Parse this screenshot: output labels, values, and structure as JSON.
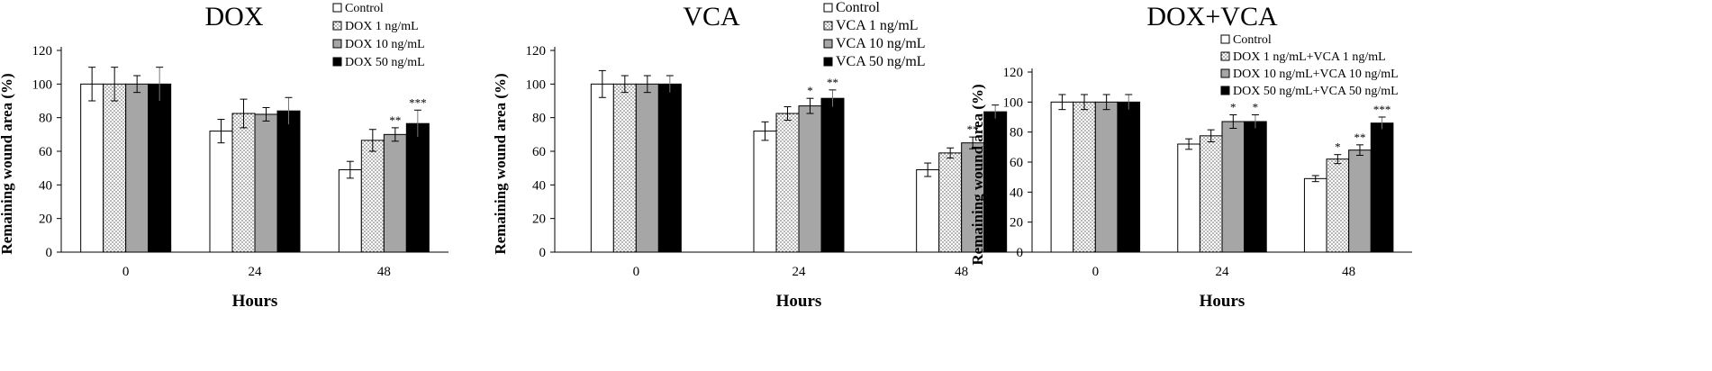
{
  "chart_data": [
    {
      "type": "bar",
      "title": "DOX",
      "xlabel": "Hours",
      "ylabel": "Remaining wound area (%)",
      "categories": [
        "0",
        "24",
        "48"
      ],
      "ylim": [
        0,
        120
      ],
      "yticks": [
        "0",
        "20",
        "40",
        "60",
        "80",
        "100",
        "120"
      ],
      "legend_position": "top-right",
      "series": [
        {
          "name": "Control",
          "fill": "white",
          "values": [
            100,
            72,
            49
          ],
          "errors": [
            10,
            7,
            5
          ],
          "annotations": [
            "",
            "",
            ""
          ]
        },
        {
          "name": "DOX 1 ng/mL",
          "fill": "dots",
          "values": [
            100,
            82.5,
            66.5
          ],
          "errors": [
            10,
            8.5,
            6.5
          ],
          "annotations": [
            "",
            "",
            ""
          ]
        },
        {
          "name": "DOX 10 ng/mL",
          "fill": "gray",
          "values": [
            100,
            82,
            70
          ],
          "errors": [
            5,
            4,
            4
          ],
          "annotations": [
            "",
            "",
            "**"
          ]
        },
        {
          "name": "DOX 50 ng/mL",
          "fill": "black",
          "values": [
            100,
            84,
            76.5
          ],
          "errors": [
            10,
            8,
            8
          ],
          "annotations": [
            "",
            "",
            "***"
          ]
        }
      ]
    },
    {
      "type": "bar",
      "title": "VCA",
      "xlabel": "Hours",
      "ylabel": "Remaining wound area (%)",
      "categories": [
        "0",
        "24",
        "48"
      ],
      "ylim": [
        0,
        120
      ],
      "yticks": [
        "0",
        "20",
        "40",
        "60",
        "80",
        "100",
        "120"
      ],
      "legend_position": "top-right",
      "series": [
        {
          "name": "Control",
          "fill": "white",
          "values": [
            100,
            72,
            49
          ],
          "errors": [
            8,
            5.5,
            4
          ],
          "annotations": [
            "",
            "",
            ""
          ]
        },
        {
          "name": "VCA 1 ng/mL",
          "fill": "dots",
          "values": [
            100,
            82.5,
            59
          ],
          "errors": [
            5,
            4,
            3
          ],
          "annotations": [
            "",
            "",
            ""
          ]
        },
        {
          "name": "VCA 10 ng/mL",
          "fill": "gray",
          "values": [
            100,
            87,
            65
          ],
          "errors": [
            5,
            4.5,
            3.5
          ],
          "annotations": [
            "",
            "*",
            "**"
          ]
        },
        {
          "name": "VCA 50 ng/mL",
          "fill": "black",
          "values": [
            100,
            91.5,
            83.5
          ],
          "errors": [
            5,
            5,
            4
          ],
          "annotations": [
            "",
            "**",
            ""
          ]
        }
      ]
    },
    {
      "type": "bar",
      "title": "DOX+VCA",
      "xlabel": "Hours",
      "ylabel": "Remaining wound area (%)",
      "categories": [
        "0",
        "24",
        "48"
      ],
      "ylim": [
        0,
        120
      ],
      "yticks": [
        "0",
        "20",
        "40",
        "60",
        "80",
        "100",
        "120"
      ],
      "legend_position": "top-right",
      "series": [
        {
          "name": "Control",
          "fill": "white",
          "values": [
            100,
            72,
            49
          ],
          "errors": [
            5,
            3.5,
            2
          ],
          "annotations": [
            "",
            "",
            ""
          ]
        },
        {
          "name": "DOX 1 ng/mL+VCA 1 ng/mL",
          "fill": "dots",
          "values": [
            100,
            77.5,
            62
          ],
          "errors": [
            5,
            4,
            3
          ],
          "annotations": [
            "",
            "",
            "*"
          ]
        },
        {
          "name": "DOX 10 ng/mL+VCA 10 ng/mL",
          "fill": "gray",
          "values": [
            100,
            87,
            68
          ],
          "errors": [
            5,
            4.5,
            3.5
          ],
          "annotations": [
            "",
            "*",
            "**"
          ]
        },
        {
          "name": "DOX 50 ng/mL+VCA 50 ng/mL",
          "fill": "black",
          "values": [
            100,
            87,
            86
          ],
          "errors": [
            5,
            4.5,
            4
          ],
          "annotations": [
            "",
            "*",
            "***"
          ]
        }
      ]
    }
  ]
}
